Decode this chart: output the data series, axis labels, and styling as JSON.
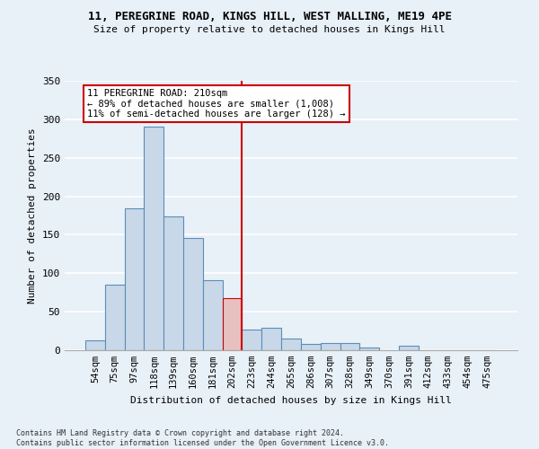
{
  "title1": "11, PEREGRINE ROAD, KINGS HILL, WEST MALLING, ME19 4PE",
  "title2": "Size of property relative to detached houses in Kings Hill",
  "xlabel": "Distribution of detached houses by size in Kings Hill",
  "ylabel": "Number of detached properties",
  "categories": [
    "54sqm",
    "75sqm",
    "97sqm",
    "118sqm",
    "139sqm",
    "160sqm",
    "181sqm",
    "202sqm",
    "223sqm",
    "244sqm",
    "265sqm",
    "286sqm",
    "307sqm",
    "328sqm",
    "349sqm",
    "370sqm",
    "391sqm",
    "412sqm",
    "433sqm",
    "454sqm",
    "475sqm"
  ],
  "values": [
    13,
    85,
    184,
    290,
    174,
    146,
    91,
    68,
    27,
    29,
    15,
    8,
    9,
    9,
    4,
    0,
    6,
    0,
    0,
    0,
    0
  ],
  "bar_color": "#c8d8e8",
  "bar_edge_color": "#5b8db8",
  "highlight_bar_index": 7,
  "highlight_bar_color": "#e8c0c0",
  "highlight_bar_edge_color": "#cc0000",
  "vline_x_index": 7.5,
  "vline_color": "#cc0000",
  "annotation_text": "11 PEREGRINE ROAD: 210sqm\n← 89% of detached houses are smaller (1,008)\n11% of semi-detached houses are larger (128) →",
  "annotation_box_color": "white",
  "annotation_box_edge_color": "#cc0000",
  "bg_color": "#e8f0f8",
  "grid_color": "white",
  "footnote": "Contains HM Land Registry data © Crown copyright and database right 2024.\nContains public sector information licensed under the Open Government Licence v3.0.",
  "ylim": [
    0,
    350
  ],
  "yticks": [
    0,
    50,
    100,
    150,
    200,
    250,
    300,
    350
  ]
}
